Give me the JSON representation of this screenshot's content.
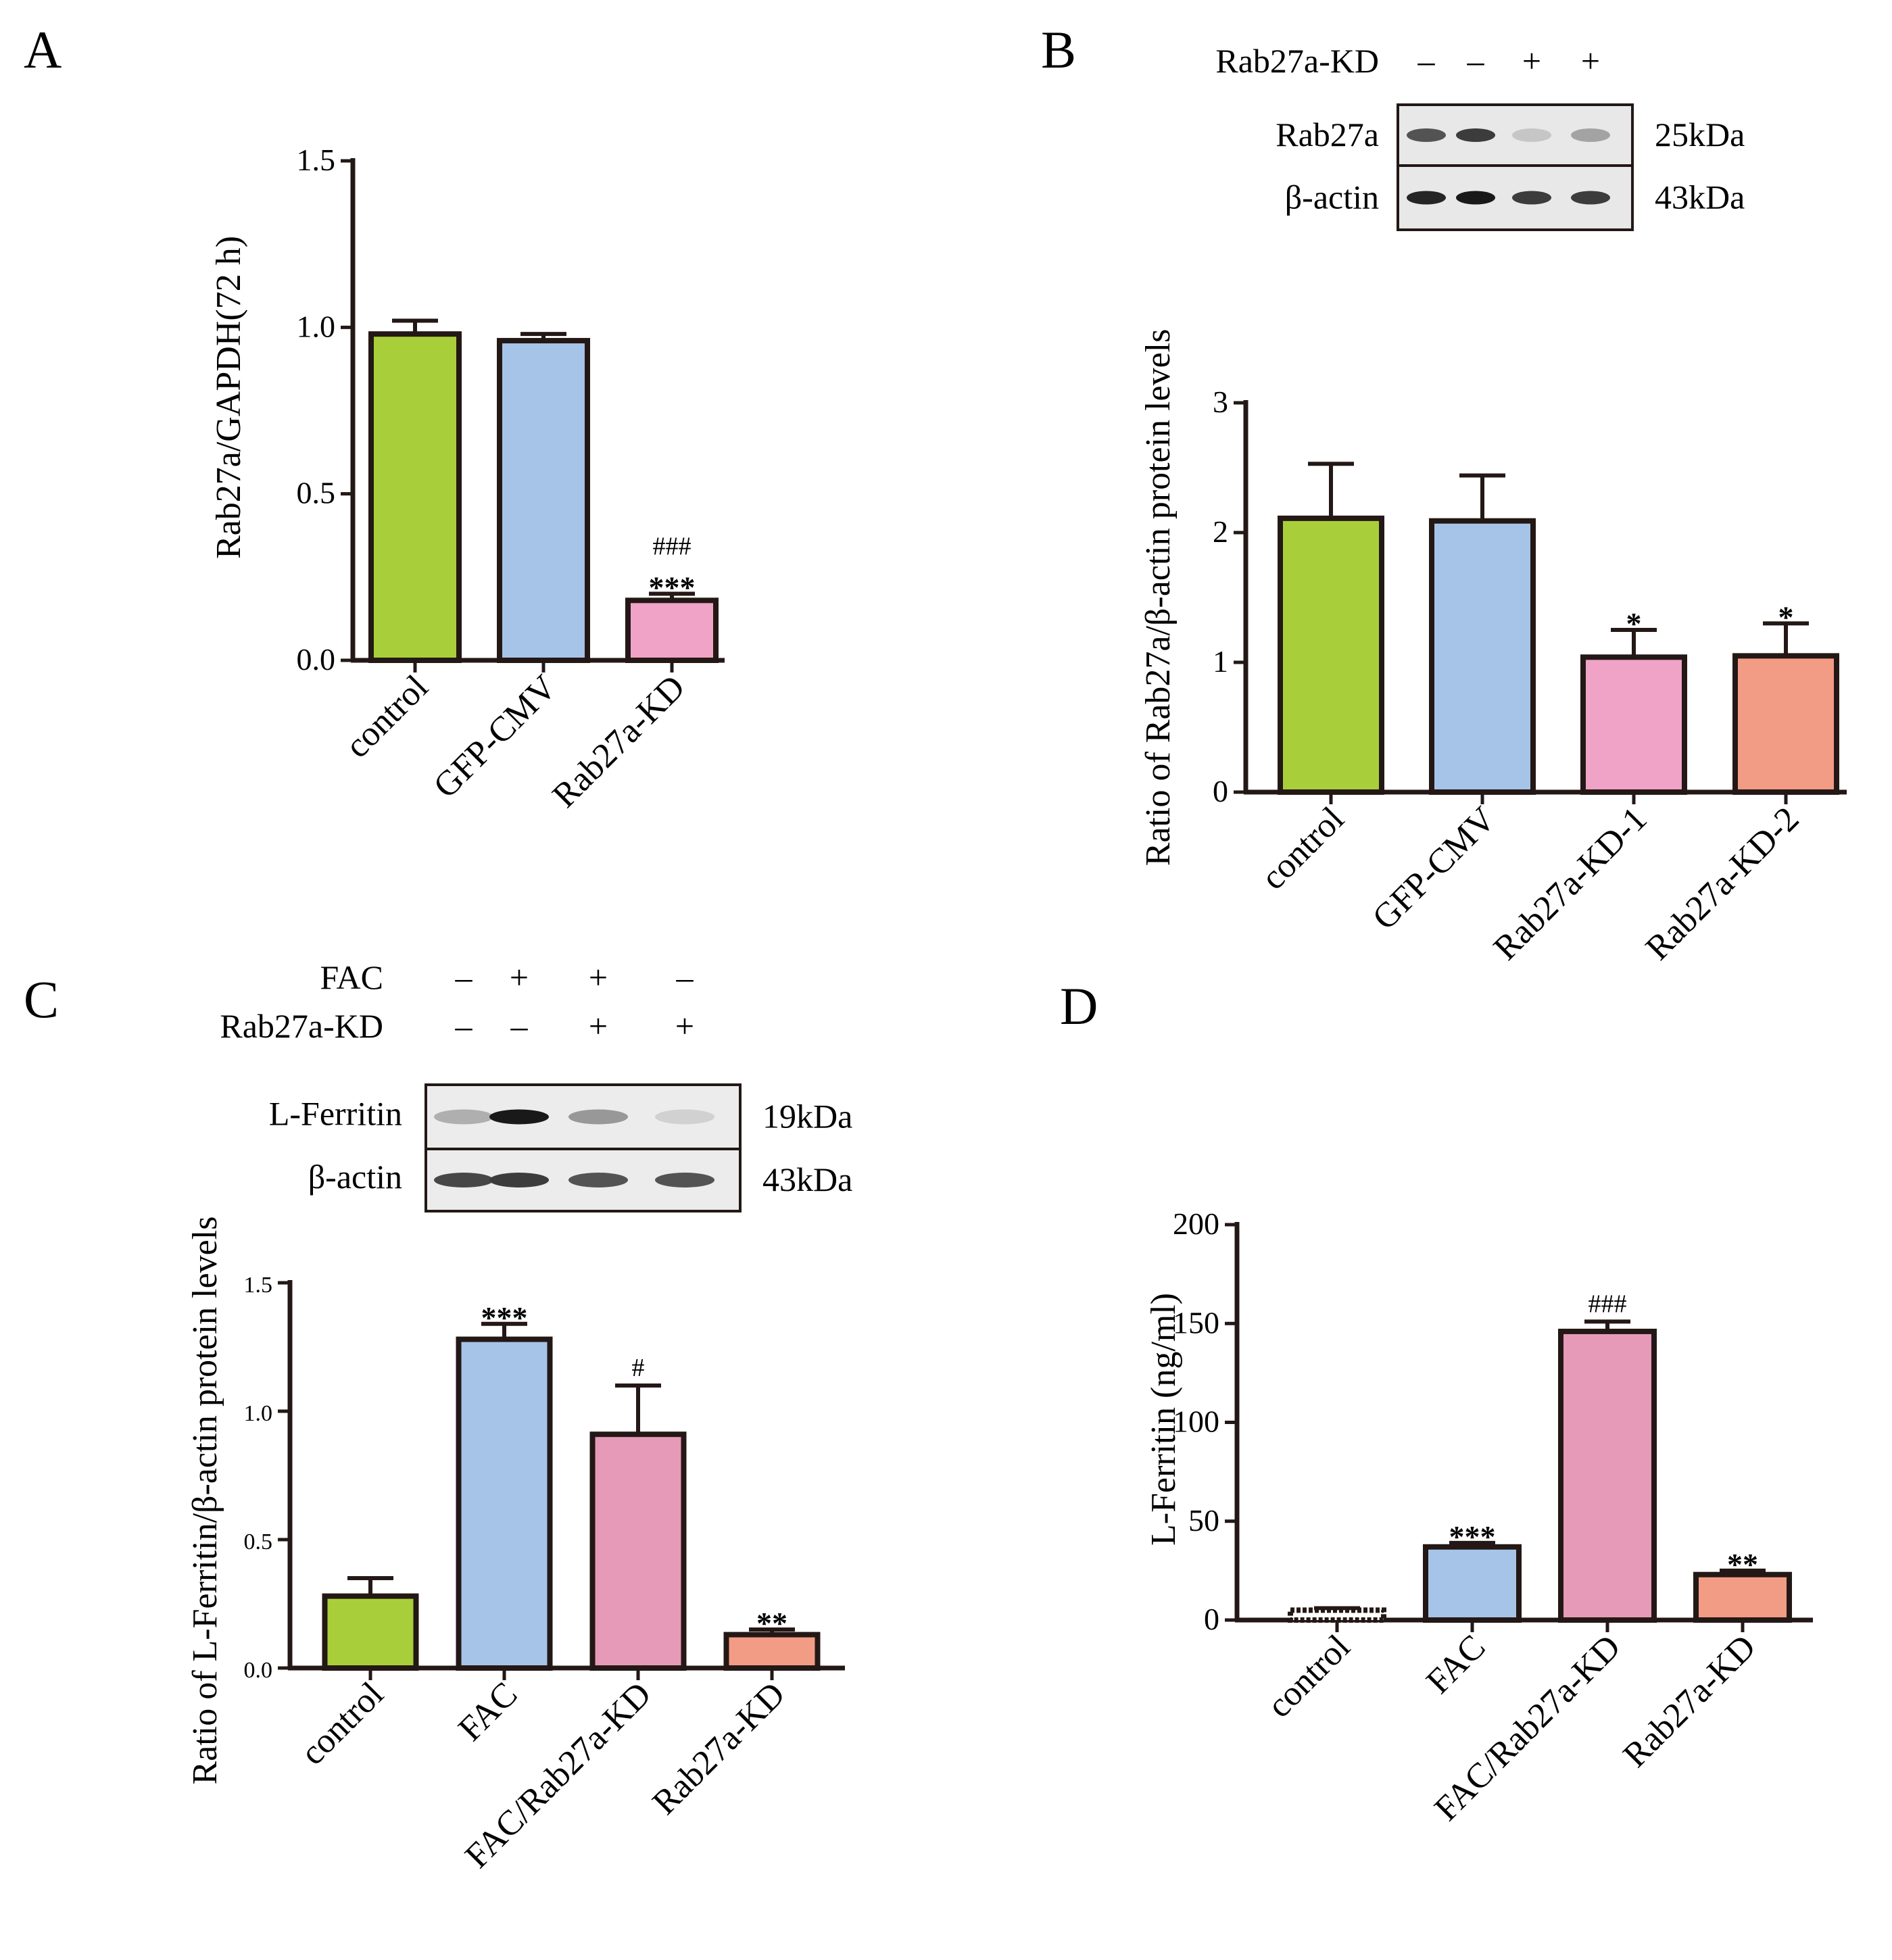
{
  "chart_data": [
    {
      "panel": "A",
      "type": "bar",
      "ylabel": "Rab27a/GAPDH(72 h)",
      "ylim": [
        0,
        1.5
      ],
      "yticks": [
        "0.0",
        "0.5",
        "1.0",
        "1.5"
      ],
      "categories": [
        "control",
        "GFP-CMV",
        "Rab27a-KD"
      ],
      "values": [
        0.98,
        0.96,
        0.18
      ],
      "errors": [
        0.04,
        0.02,
        0.02
      ],
      "colors": [
        "#a8cf3a",
        "#a6c4e8",
        "#f0a3c7"
      ],
      "annotations": [
        "",
        "",
        "***"
      ],
      "annotations2": [
        "",
        "",
        "###"
      ]
    },
    {
      "panel": "B",
      "type": "bar",
      "ylabel": "Ratio of  Rab27a/β-actin protein levels",
      "ylim": [
        0,
        3
      ],
      "yticks": [
        "0",
        "1",
        "2",
        "3"
      ],
      "categories": [
        "control",
        "GFP-CMV",
        "Rab27a-KD-1",
        "Rab27a-KD-2"
      ],
      "values": [
        2.11,
        2.09,
        1.04,
        1.05
      ],
      "errors": [
        0.42,
        0.35,
        0.21,
        0.25
      ],
      "colors": [
        "#a8cf3a",
        "#a6c4e8",
        "#f0a3c7",
        "#f29c85"
      ],
      "annotations": [
        "",
        "",
        "*",
        "*"
      ],
      "western_blot": {
        "condition_label": "Rab27a-KD",
        "condition_signs": [
          "–",
          "–",
          "+",
          "+"
        ],
        "rows": [
          {
            "name": "Rab27a",
            "size": "25kDa",
            "intensities": [
              0.75,
              0.85,
              0.25,
              0.4
            ]
          },
          {
            "name": "β-actin",
            "size": "43kDa",
            "intensities": [
              0.95,
              1.0,
              0.85,
              0.85
            ]
          }
        ]
      }
    },
    {
      "panel": "C",
      "type": "bar",
      "ylabel": "Ratio of  L-Ferritin/β-actin protein levels",
      "ylim": [
        0,
        1.5
      ],
      "yticks": [
        "0.0",
        "0.5",
        "1.0",
        "1.5"
      ],
      "categories": [
        "control",
        "FAC",
        "FAC/Rab27a-KD",
        "Rab27a-KD"
      ],
      "values": [
        0.28,
        1.28,
        0.91,
        0.13
      ],
      "errors": [
        0.07,
        0.06,
        0.19,
        0.02
      ],
      "colors": [
        "#a8cf3a",
        "#a6c4e8",
        "#e69ab8",
        "#f29c85"
      ],
      "annotations": [
        "",
        "***",
        "#",
        "**"
      ],
      "western_blot": {
        "condition_rows": [
          {
            "label": "FAC",
            "signs": [
              "–",
              "+",
              "+",
              "–"
            ]
          },
          {
            "label": "Rab27a-KD",
            "signs": [
              "–",
              "–",
              "+",
              "+"
            ]
          }
        ],
        "rows": [
          {
            "name": "L-Ferritin",
            "size": "19kDa",
            "intensities": [
              0.35,
              1.0,
              0.45,
              0.2
            ]
          },
          {
            "name": "β-actin",
            "size": "43kDa",
            "intensities": [
              0.8,
              0.85,
              0.75,
              0.75
            ]
          }
        ]
      }
    },
    {
      "panel": "D",
      "type": "bar",
      "ylabel": "L-Ferritin (ng/ml)",
      "ylim": [
        0,
        200
      ],
      "yticks": [
        "0",
        "50",
        "100",
        "150",
        "200"
      ],
      "categories": [
        "control",
        "FAC",
        "FAC/Rab27a-KD",
        "Rab27a-KD"
      ],
      "values": [
        5,
        37,
        146,
        23
      ],
      "errors": [
        1,
        2,
        5,
        2
      ],
      "colors": [
        "#ffffff",
        "#a6c4e8",
        "#e69ab8",
        "#f29c85"
      ],
      "annotations": [
        "",
        "***",
        "###",
        "**"
      ]
    }
  ]
}
